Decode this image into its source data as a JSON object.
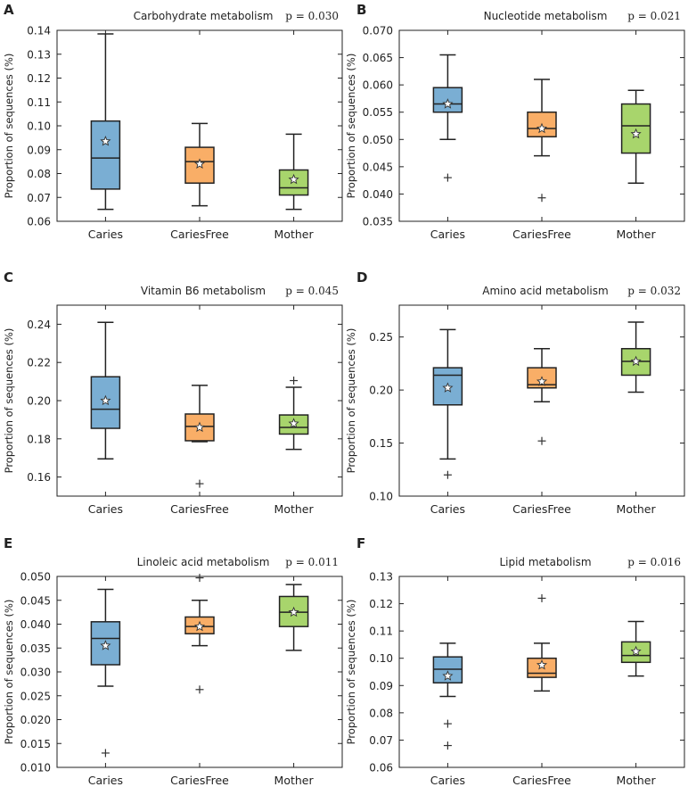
{
  "groups": [
    "Caries",
    "CariesFree",
    "Mother"
  ],
  "ylabel": "Proportion of sequences (%)",
  "colors": {
    "Caries": "#7aaed3",
    "CariesFree": "#f9ae67",
    "Mother": "#a8d56c",
    "star": "#ffffff",
    "outline": "#222222"
  },
  "chart_data": [
    {
      "panel": "A",
      "type": "box",
      "title": "Carbohydrate metabolism",
      "p_value": "p = 0.030",
      "ylim": [
        0.06,
        0.14
      ],
      "yticks": [
        "0.06",
        "0.07",
        "0.08",
        "0.09",
        "0.10",
        "0.11",
        "0.12",
        "0.13",
        "0.14"
      ],
      "series": [
        {
          "name": "Caries",
          "whisker_low": 0.065,
          "q1": 0.0735,
          "median": 0.0865,
          "q3": 0.102,
          "whisker_high": 0.1385,
          "mean": 0.0935,
          "outliers": []
        },
        {
          "name": "CariesFree",
          "whisker_low": 0.0665,
          "q1": 0.076,
          "median": 0.085,
          "q3": 0.091,
          "whisker_high": 0.101,
          "mean": 0.084,
          "outliers": []
        },
        {
          "name": "Mother",
          "whisker_low": 0.065,
          "q1": 0.071,
          "median": 0.074,
          "q3": 0.0815,
          "whisker_high": 0.0965,
          "mean": 0.0775,
          "outliers": []
        }
      ]
    },
    {
      "panel": "B",
      "type": "box",
      "title": "Nucleotide metabolism",
      "p_value": "p = 0.021",
      "ylim": [
        0.035,
        0.07
      ],
      "yticks": [
        "0.035",
        "0.040",
        "0.045",
        "0.050",
        "0.055",
        "0.060",
        "0.065",
        "0.070"
      ],
      "series": [
        {
          "name": "Caries",
          "whisker_low": 0.05,
          "q1": 0.055,
          "median": 0.0565,
          "q3": 0.0595,
          "whisker_high": 0.0655,
          "mean": 0.0565,
          "outliers": [
            0.043
          ]
        },
        {
          "name": "CariesFree",
          "whisker_low": 0.047,
          "q1": 0.0505,
          "median": 0.052,
          "q3": 0.055,
          "whisker_high": 0.061,
          "mean": 0.052,
          "outliers": [
            0.0393
          ]
        },
        {
          "name": "Mother",
          "whisker_low": 0.042,
          "q1": 0.0475,
          "median": 0.0525,
          "q3": 0.0565,
          "whisker_high": 0.059,
          "mean": 0.051,
          "outliers": []
        }
      ]
    },
    {
      "panel": "C",
      "type": "box",
      "title": "Vitamin B6 metabolism",
      "p_value": "p = 0.045",
      "ylim": [
        0.15,
        0.25
      ],
      "yticks": [
        "0.16",
        "0.18",
        "0.20",
        "0.22",
        "0.24"
      ],
      "series": [
        {
          "name": "Caries",
          "whisker_low": 0.1695,
          "q1": 0.1855,
          "median": 0.1955,
          "q3": 0.2125,
          "whisker_high": 0.241,
          "mean": 0.2,
          "outliers": []
        },
        {
          "name": "CariesFree",
          "whisker_low": 0.1785,
          "q1": 0.179,
          "median": 0.1865,
          "q3": 0.193,
          "whisker_high": 0.208,
          "mean": 0.186,
          "outliers": [
            0.1565
          ]
        },
        {
          "name": "Mother",
          "whisker_low": 0.1745,
          "q1": 0.1825,
          "median": 0.186,
          "q3": 0.1925,
          "whisker_high": 0.207,
          "mean": 0.188,
          "outliers": [
            0.2105
          ]
        }
      ]
    },
    {
      "panel": "D",
      "type": "box",
      "title": "Amino acid metabolism",
      "p_value": "p = 0.032",
      "ylim": [
        0.1,
        0.28
      ],
      "yticks": [
        "0.10",
        "0.15",
        "0.20",
        "0.25"
      ],
      "series": [
        {
          "name": "Caries",
          "whisker_low": 0.135,
          "q1": 0.186,
          "median": 0.214,
          "q3": 0.221,
          "whisker_high": 0.257,
          "mean": 0.202,
          "outliers": [
            0.12
          ]
        },
        {
          "name": "CariesFree",
          "whisker_low": 0.189,
          "q1": 0.202,
          "median": 0.205,
          "q3": 0.221,
          "whisker_high": 0.239,
          "mean": 0.208,
          "outliers": [
            0.152
          ]
        },
        {
          "name": "Mother",
          "whisker_low": 0.198,
          "q1": 0.214,
          "median": 0.227,
          "q3": 0.239,
          "whisker_high": 0.264,
          "mean": 0.227,
          "outliers": []
        }
      ]
    },
    {
      "panel": "E",
      "type": "box",
      "title": "Linoleic acid metabolism",
      "p_value": "p = 0.011",
      "ylim": [
        0.01,
        0.05
      ],
      "yticks": [
        "0.010",
        "0.015",
        "0.020",
        "0.025",
        "0.030",
        "0.035",
        "0.040",
        "0.045",
        "0.050"
      ],
      "series": [
        {
          "name": "Caries",
          "whisker_low": 0.027,
          "q1": 0.0315,
          "median": 0.037,
          "q3": 0.0405,
          "whisker_high": 0.0473,
          "mean": 0.0355,
          "outliers": [
            0.013
          ]
        },
        {
          "name": "CariesFree",
          "whisker_low": 0.0355,
          "q1": 0.038,
          "median": 0.0395,
          "q3": 0.0415,
          "whisker_high": 0.045,
          "mean": 0.0395,
          "outliers": [
            0.0263,
            0.0497
          ]
        },
        {
          "name": "Mother",
          "whisker_low": 0.0345,
          "q1": 0.0395,
          "median": 0.0425,
          "q3": 0.0458,
          "whisker_high": 0.0483,
          "mean": 0.0425,
          "outliers": []
        }
      ]
    },
    {
      "panel": "F",
      "type": "box",
      "title": "Lipid metabolism",
      "p_value": "p = 0.016",
      "ylim": [
        0.06,
        0.13
      ],
      "yticks": [
        "0.06",
        "0.07",
        "0.08",
        "0.09",
        "0.10",
        "0.11",
        "0.12",
        "0.13"
      ],
      "series": [
        {
          "name": "Caries",
          "whisker_low": 0.086,
          "q1": 0.091,
          "median": 0.096,
          "q3": 0.1005,
          "whisker_high": 0.1055,
          "mean": 0.0935,
          "outliers": [
            0.076,
            0.068
          ]
        },
        {
          "name": "CariesFree",
          "whisker_low": 0.088,
          "q1": 0.093,
          "median": 0.0945,
          "q3": 0.1,
          "whisker_high": 0.1055,
          "mean": 0.0975,
          "outliers": [
            0.122
          ]
        },
        {
          "name": "Mother",
          "whisker_low": 0.0935,
          "q1": 0.0985,
          "median": 0.101,
          "q3": 0.106,
          "whisker_high": 0.1135,
          "mean": 0.1025,
          "outliers": []
        }
      ]
    }
  ]
}
